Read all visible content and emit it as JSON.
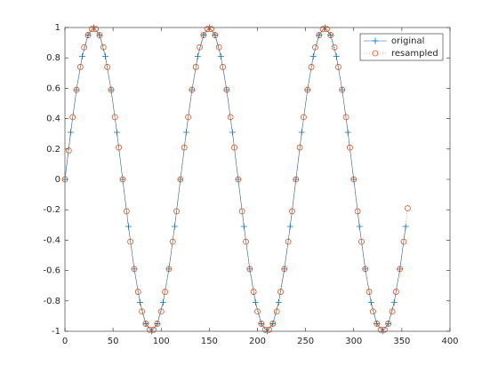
{
  "chart_data": {
    "type": "line",
    "xlim": [
      0,
      400
    ],
    "xticks": [
      0,
      50,
      100,
      150,
      200,
      250,
      300,
      350,
      400
    ],
    "ylim": [
      -1,
      1
    ],
    "yticks": [
      -1,
      -0.8,
      -0.6,
      -0.4,
      -0.2,
      0,
      0.2,
      0.4,
      0.6,
      0.8,
      1
    ],
    "legend": "northeast",
    "grid": false,
    "series": [
      {
        "name": "original",
        "color": "#0072bd",
        "linestyle": "solid",
        "marker": "plus",
        "x": [
          0,
          6,
          12,
          18,
          24,
          30,
          36,
          42,
          48,
          54,
          60,
          66,
          72,
          78,
          84,
          90,
          96,
          102,
          108,
          114,
          120,
          126,
          132,
          138,
          144,
          150,
          156,
          162,
          168,
          174,
          180,
          186,
          192,
          198,
          204,
          210,
          216,
          222,
          228,
          234,
          240,
          246,
          252,
          258,
          264,
          270,
          276,
          282,
          288,
          294,
          300,
          306,
          312,
          318,
          324,
          330,
          336,
          342,
          348,
          354
        ],
        "values": [
          0,
          0.31,
          0.59,
          0.81,
          0.95,
          1,
          0.95,
          0.81,
          0.59,
          0.31,
          0,
          -0.31,
          -0.59,
          -0.81,
          -0.95,
          -1,
          -0.95,
          -0.81,
          -0.59,
          -0.31,
          0,
          0.31,
          0.59,
          0.81,
          0.95,
          1,
          0.95,
          0.81,
          0.59,
          0.31,
          0,
          -0.31,
          -0.59,
          -0.81,
          -0.95,
          -1,
          -0.95,
          -0.81,
          -0.59,
          -0.31,
          0,
          0.31,
          0.59,
          0.81,
          0.95,
          1,
          0.95,
          0.81,
          0.59,
          0.31,
          0,
          -0.31,
          -0.59,
          -0.81,
          -0.95,
          -1,
          -0.95,
          -0.81,
          -0.59,
          -0.31
        ]
      },
      {
        "name": "resampled",
        "color": "#d95319",
        "linestyle": "dotted",
        "marker": "circle",
        "x": [
          0,
          4,
          8,
          12,
          16,
          20,
          24,
          28,
          32,
          36,
          40,
          44,
          48,
          52,
          56,
          60,
          64,
          68,
          72,
          76,
          80,
          84,
          88,
          92,
          96,
          100,
          104,
          108,
          112,
          116,
          120,
          124,
          128,
          132,
          136,
          140,
          144,
          148,
          152,
          156,
          160,
          164,
          168,
          172,
          176,
          180,
          184,
          188,
          192,
          196,
          200,
          204,
          208,
          212,
          216,
          220,
          224,
          228,
          232,
          236,
          240,
          244,
          248,
          252,
          256,
          260,
          264,
          268,
          272,
          276,
          280,
          284,
          288,
          292,
          296,
          300,
          304,
          308,
          312,
          316,
          320,
          324,
          328,
          332,
          336,
          340,
          344,
          348,
          352,
          356
        ],
        "values": [
          0,
          0.19,
          0.41,
          0.59,
          0.74,
          0.87,
          0.95,
          0.99,
          0.99,
          0.95,
          0.87,
          0.74,
          0.59,
          0.41,
          0.21,
          0,
          -0.21,
          -0.41,
          -0.59,
          -0.74,
          -0.87,
          -0.95,
          -0.99,
          -0.99,
          -0.95,
          -0.87,
          -0.74,
          -0.59,
          -0.41,
          -0.21,
          0,
          0.21,
          0.41,
          0.59,
          0.74,
          0.87,
          0.95,
          0.99,
          0.99,
          0.95,
          0.87,
          0.74,
          0.59,
          0.41,
          0.21,
          0,
          -0.21,
          -0.41,
          -0.59,
          -0.74,
          -0.87,
          -0.95,
          -0.99,
          -0.99,
          -0.95,
          -0.87,
          -0.74,
          -0.59,
          -0.41,
          -0.21,
          0,
          0.21,
          0.41,
          0.59,
          0.74,
          0.87,
          0.95,
          0.99,
          0.99,
          0.95,
          0.87,
          0.74,
          0.59,
          0.41,
          0.21,
          0,
          -0.21,
          -0.41,
          -0.59,
          -0.74,
          -0.87,
          -0.95,
          -0.99,
          -0.99,
          -0.95,
          -0.87,
          -0.74,
          -0.59,
          -0.41,
          -0.19
        ]
      }
    ]
  }
}
